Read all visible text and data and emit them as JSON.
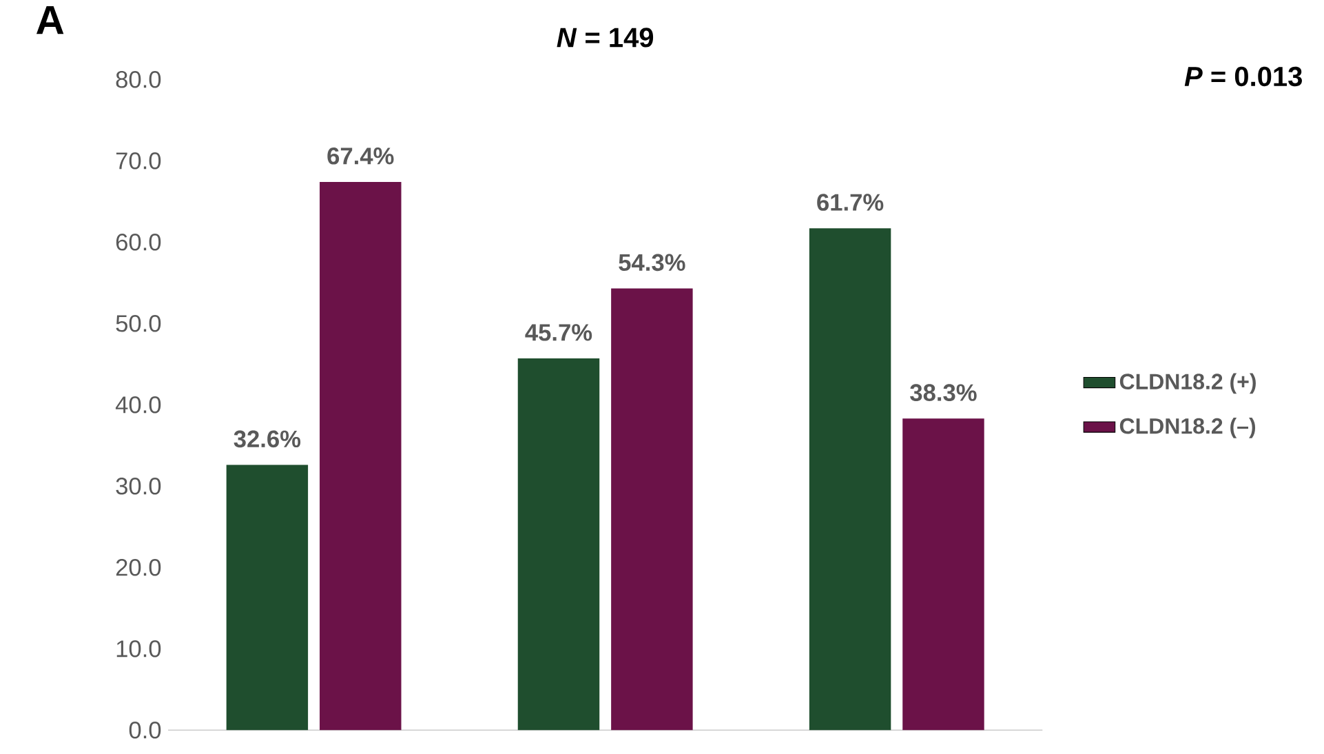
{
  "chart_data": {
    "type": "bar",
    "title": "*N* = 149",
    "annotations": [
      "A",
      "*P* = 0.013"
    ],
    "categories": [
      null,
      null,
      null
    ],
    "series": [
      {
        "name": "CLDN18.2  (+)",
        "color": "#1f4e2e",
        "values": [
          32.6,
          45.7,
          61.7
        ],
        "value_labels": [
          "32.6%",
          "45.7%",
          "61.7%"
        ]
      },
      {
        "name": "CLDN18.2 (–)",
        "color": "#6b1248",
        "values": [
          67.4,
          54.3,
          38.3
        ],
        "value_labels": [
          "67.4%",
          "54.3%",
          "38.3%"
        ]
      }
    ],
    "ylim": [
      0,
      80
    ],
    "yticks": [
      {
        "value": 0,
        "label": "0.0"
      },
      {
        "value": 10,
        "label": "10.0"
      },
      {
        "value": 20,
        "label": "20.0"
      },
      {
        "value": 30,
        "label": "30.0"
      },
      {
        "value": 40,
        "label": "40.0"
      },
      {
        "value": 50,
        "label": "50.0"
      },
      {
        "value": 60,
        "label": "60.0"
      },
      {
        "value": 70,
        "label": "70.0"
      },
      {
        "value": 80,
        "label": "80.0"
      }
    ],
    "legend": "right"
  }
}
